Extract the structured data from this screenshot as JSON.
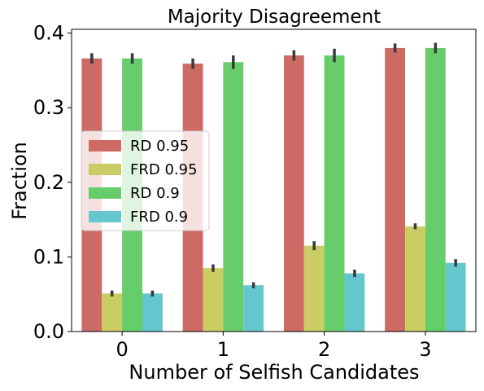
{
  "chart_data": {
    "type": "bar",
    "title": "Majority Disagreement",
    "xlabel": "Number of Selfish Candidates",
    "ylabel": "Fraction",
    "categories": [
      "0",
      "1",
      "2",
      "3"
    ],
    "ylim": [
      0,
      0.405
    ],
    "yticks": [
      0.0,
      0.1,
      0.2,
      0.3,
      0.4
    ],
    "ytick_labels": [
      "0.0",
      "0.1",
      "0.2",
      "0.3",
      "0.4"
    ],
    "legend_position": "center-left",
    "grid": false,
    "series": [
      {
        "name": "RD 0.95",
        "color": "#cd6a64",
        "values": [
          0.366,
          0.359,
          0.37,
          0.38
        ],
        "err": [
          0.007,
          0.007,
          0.007,
          0.006
        ]
      },
      {
        "name": "FRD 0.95",
        "color": "#c9cd64",
        "values": [
          0.051,
          0.085,
          0.115,
          0.141
        ],
        "err": [
          0.004,
          0.005,
          0.006,
          0.004
        ]
      },
      {
        "name": "RD 0.9",
        "color": "#66cd6a",
        "values": [
          0.366,
          0.361,
          0.37,
          0.38
        ],
        "err": [
          0.007,
          0.009,
          0.009,
          0.007
        ]
      },
      {
        "name": "FRD 0.9",
        "color": "#64c7cd",
        "values": [
          0.051,
          0.062,
          0.078,
          0.092
        ],
        "err": [
          0.004,
          0.004,
          0.005,
          0.005
        ]
      }
    ]
  }
}
